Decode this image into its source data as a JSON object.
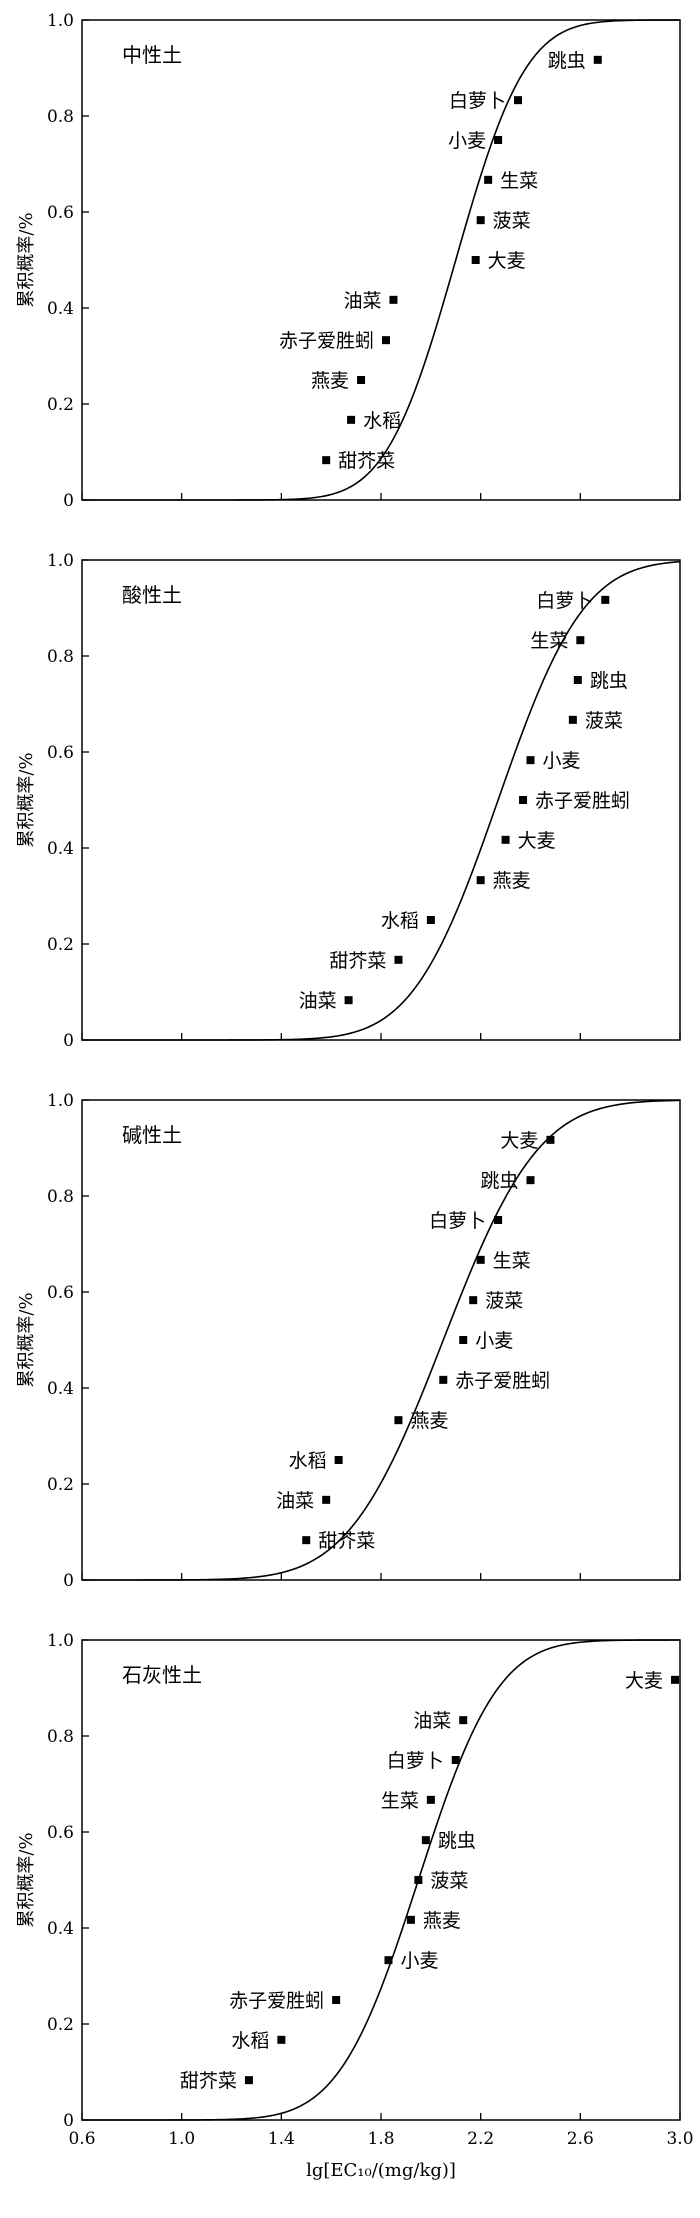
{
  "x_label": "lg[EC₁₀/(mg/kg)]",
  "chart_data": [
    {
      "type": "scatter",
      "soil": "中性土",
      "ylabel": "累积概率/%",
      "xlim": [
        0.6,
        3.0
      ],
      "ylim": [
        0,
        1.0
      ],
      "x_ticks": [
        "0.6",
        "1.0",
        "1.4",
        "1.8",
        "2.2",
        "2.6",
        "3.0"
      ],
      "y_ticks": [
        "0",
        "0.2",
        "0.4",
        "0.6",
        "0.8",
        "1.0"
      ],
      "fit_curve": {
        "mu": 2.1,
        "sigma": 0.22
      },
      "points": [
        {
          "label": "跳虫",
          "x": 2.67,
          "y": 0.917,
          "label_side": "left"
        },
        {
          "label": "白萝卜",
          "x": 2.35,
          "y": 0.833,
          "label_side": "left"
        },
        {
          "label": "小麦",
          "x": 2.27,
          "y": 0.75,
          "label_side": "left"
        },
        {
          "label": "生菜",
          "x": 2.23,
          "y": 0.667,
          "label_side": "right"
        },
        {
          "label": "菠菜",
          "x": 2.2,
          "y": 0.583,
          "label_side": "right"
        },
        {
          "label": "大麦",
          "x": 2.18,
          "y": 0.5,
          "label_side": "right"
        },
        {
          "label": "油菜",
          "x": 1.85,
          "y": 0.417,
          "label_side": "left"
        },
        {
          "label": "赤子爱胜蚓",
          "x": 1.82,
          "y": 0.333,
          "label_side": "left"
        },
        {
          "label": "燕麦",
          "x": 1.72,
          "y": 0.25,
          "label_side": "left"
        },
        {
          "label": "水稻",
          "x": 1.68,
          "y": 0.167,
          "label_side": "right"
        },
        {
          "label": "甜芥菜",
          "x": 1.58,
          "y": 0.083,
          "label_side": "right"
        }
      ]
    },
    {
      "type": "scatter",
      "soil": "酸性土",
      "ylabel": "累积概率/%",
      "xlim": [
        0.6,
        3.0
      ],
      "ylim": [
        0,
        1.0
      ],
      "x_ticks": [
        "0.6",
        "1.0",
        "1.4",
        "1.8",
        "2.2",
        "2.6",
        "3.0"
      ],
      "y_ticks": [
        "0",
        "0.2",
        "0.4",
        "0.6",
        "0.8",
        "1.0"
      ],
      "fit_curve": {
        "mu": 2.27,
        "sigma": 0.27
      },
      "points": [
        {
          "label": "白萝卜",
          "x": 2.7,
          "y": 0.917,
          "label_side": "left"
        },
        {
          "label": "生菜",
          "x": 2.6,
          "y": 0.833,
          "label_side": "left"
        },
        {
          "label": "跳虫",
          "x": 2.59,
          "y": 0.75,
          "label_side": "right"
        },
        {
          "label": "菠菜",
          "x": 2.57,
          "y": 0.667,
          "label_side": "right"
        },
        {
          "label": "小麦",
          "x": 2.4,
          "y": 0.583,
          "label_side": "right"
        },
        {
          "label": "赤子爱胜蚓",
          "x": 2.37,
          "y": 0.5,
          "label_side": "right"
        },
        {
          "label": "大麦",
          "x": 2.3,
          "y": 0.417,
          "label_side": "right"
        },
        {
          "label": "燕麦",
          "x": 2.2,
          "y": 0.333,
          "label_side": "right"
        },
        {
          "label": "水稻",
          "x": 2.0,
          "y": 0.25,
          "label_side": "left"
        },
        {
          "label": "甜芥菜",
          "x": 1.87,
          "y": 0.167,
          "label_side": "left"
        },
        {
          "label": "油菜",
          "x": 1.67,
          "y": 0.083,
          "label_side": "left"
        }
      ]
    },
    {
      "type": "scatter",
      "soil": "碱性土",
      "ylabel": "累积概率/%",
      "xlim": [
        0.6,
        3.0
      ],
      "ylim": [
        0,
        1.0
      ],
      "x_ticks": [
        "0.6",
        "1.0",
        "1.4",
        "1.8",
        "2.2",
        "2.6",
        "3.0"
      ],
      "y_ticks": [
        "0",
        "0.2",
        "0.4",
        "0.6",
        "0.8",
        "1.0"
      ],
      "fit_curve": {
        "mu": 2.05,
        "sigma": 0.3
      },
      "points": [
        {
          "label": "大麦",
          "x": 2.48,
          "y": 0.917,
          "label_side": "left"
        },
        {
          "label": "跳虫",
          "x": 2.4,
          "y": 0.833,
          "label_side": "left"
        },
        {
          "label": "白萝卜",
          "x": 2.27,
          "y": 0.75,
          "label_side": "left"
        },
        {
          "label": "生菜",
          "x": 2.2,
          "y": 0.667,
          "label_side": "right"
        },
        {
          "label": "菠菜",
          "x": 2.17,
          "y": 0.583,
          "label_side": "right"
        },
        {
          "label": "小麦",
          "x": 2.13,
          "y": 0.5,
          "label_side": "right"
        },
        {
          "label": "赤子爱胜蚓",
          "x": 2.05,
          "y": 0.417,
          "label_side": "right"
        },
        {
          "label": "燕麦",
          "x": 1.87,
          "y": 0.333,
          "label_side": "right"
        },
        {
          "label": "水稻",
          "x": 1.63,
          "y": 0.25,
          "label_side": "left"
        },
        {
          "label": "油菜",
          "x": 1.58,
          "y": 0.167,
          "label_side": "left"
        },
        {
          "label": "甜芥菜",
          "x": 1.5,
          "y": 0.083,
          "label_side": "right"
        }
      ]
    },
    {
      "type": "scatter",
      "soil": "石灰性土",
      "ylabel": "累积概率/%",
      "xlim": [
        0.6,
        3.0
      ],
      "ylim": [
        0,
        1.0
      ],
      "x_ticks": [
        "0.6",
        "1.0",
        "1.4",
        "1.8",
        "2.2",
        "2.6",
        "3.0"
      ],
      "y_ticks": [
        "0",
        "0.2",
        "0.4",
        "0.6",
        "0.8",
        "1.0"
      ],
      "fit_curve": {
        "mu": 1.95,
        "sigma": 0.25
      },
      "points": [
        {
          "label": "大麦",
          "x": 2.98,
          "y": 0.917,
          "label_side": "left"
        },
        {
          "label": "油菜",
          "x": 2.13,
          "y": 0.833,
          "label_side": "left"
        },
        {
          "label": "白萝卜",
          "x": 2.1,
          "y": 0.75,
          "label_side": "left"
        },
        {
          "label": "生菜",
          "x": 2.0,
          "y": 0.667,
          "label_side": "left"
        },
        {
          "label": "跳虫",
          "x": 1.98,
          "y": 0.583,
          "label_side": "right"
        },
        {
          "label": "菠菜",
          "x": 1.95,
          "y": 0.5,
          "label_side": "right"
        },
        {
          "label": "燕麦",
          "x": 1.92,
          "y": 0.417,
          "label_side": "right"
        },
        {
          "label": "小麦",
          "x": 1.83,
          "y": 0.333,
          "label_side": "right"
        },
        {
          "label": "赤子爱胜蚓",
          "x": 1.62,
          "y": 0.25,
          "label_side": "left"
        },
        {
          "label": "水稻",
          "x": 1.4,
          "y": 0.167,
          "label_side": "left"
        },
        {
          "label": "甜芥菜",
          "x": 1.27,
          "y": 0.083,
          "label_side": "left"
        }
      ]
    }
  ]
}
